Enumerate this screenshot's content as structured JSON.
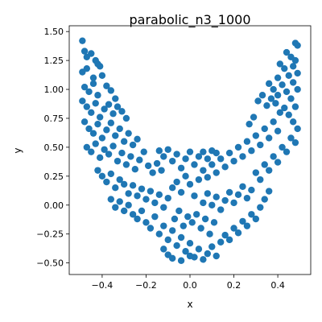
{
  "chart_data": {
    "type": "scatter",
    "title": "parabolic_n3_1000",
    "xlabel": "x",
    "ylabel": "y",
    "xlim": [
      -0.55,
      0.55
    ],
    "ylim": [
      -0.6,
      1.55
    ],
    "xticks": [
      -0.4,
      -0.2,
      0.0,
      0.2,
      0.4
    ],
    "xtick_labels": [
      "−0.4",
      "−0.2",
      "0.0",
      "0.2",
      "0.4"
    ],
    "yticks": [
      -0.5,
      -0.25,
      0.0,
      0.25,
      0.5,
      0.75,
      1.0,
      1.25,
      1.5
    ],
    "ytick_labels": [
      "−0.50",
      "−0.25",
      "0.00",
      "0.25",
      "0.50",
      "0.75",
      "1.00",
      "1.25",
      "1.50"
    ],
    "grid": false,
    "marker_color": "#1f77b4",
    "series": [
      {
        "points": [
          [
            -0.49,
            1.42
          ],
          [
            -0.48,
            1.33
          ],
          [
            -0.47,
            1.28
          ],
          [
            -0.45,
            1.31
          ],
          [
            -0.43,
            1.25
          ],
          [
            -0.42,
            1.22
          ],
          [
            -0.49,
            1.15
          ],
          [
            -0.47,
            1.18
          ],
          [
            -0.44,
            1.1
          ],
          [
            -0.41,
            1.2
          ],
          [
            -0.48,
            1.02
          ],
          [
            -0.46,
            0.98
          ],
          [
            -0.44,
            1.05
          ],
          [
            -0.42,
            0.95
          ],
          [
            -0.4,
            1.12
          ],
          [
            -0.38,
            1.03
          ],
          [
            -0.36,
            0.99
          ],
          [
            -0.34,
            0.92
          ],
          [
            -0.49,
            0.9
          ],
          [
            -0.47,
            0.85
          ],
          [
            -0.45,
            0.8
          ],
          [
            -0.43,
            0.88
          ],
          [
            -0.41,
            0.76
          ],
          [
            -0.39,
            0.83
          ],
          [
            -0.37,
            0.87
          ],
          [
            -0.35,
            0.79
          ],
          [
            -0.33,
            0.85
          ],
          [
            -0.31,
            0.81
          ],
          [
            -0.29,
            0.75
          ],
          [
            -0.48,
            0.72
          ],
          [
            -0.46,
            0.66
          ],
          [
            -0.44,
            0.62
          ],
          [
            -0.42,
            0.7
          ],
          [
            -0.4,
            0.58
          ],
          [
            -0.38,
            0.65
          ],
          [
            -0.36,
            0.71
          ],
          [
            -0.34,
            0.6
          ],
          [
            -0.32,
            0.66
          ],
          [
            -0.3,
            0.55
          ],
          [
            -0.28,
            0.62
          ],
          [
            -0.26,
            0.52
          ],
          [
            -0.24,
            0.57
          ],
          [
            -0.47,
            0.5
          ],
          [
            -0.45,
            0.46
          ],
          [
            -0.43,
            0.53
          ],
          [
            -0.41,
            0.41
          ],
          [
            -0.39,
            0.48
          ],
          [
            -0.37,
            0.44
          ],
          [
            -0.35,
            0.51
          ],
          [
            -0.33,
            0.38
          ],
          [
            -0.31,
            0.45
          ],
          [
            -0.29,
            0.35
          ],
          [
            -0.27,
            0.42
          ],
          [
            -0.25,
            0.31
          ],
          [
            -0.23,
            0.39
          ],
          [
            -0.21,
            0.46
          ],
          [
            -0.19,
            0.34
          ],
          [
            -0.17,
            0.28
          ],
          [
            -0.15,
            0.36
          ],
          [
            -0.13,
            0.3
          ],
          [
            -0.42,
            0.3
          ],
          [
            -0.4,
            0.25
          ],
          [
            -0.38,
            0.2
          ],
          [
            -0.36,
            0.27
          ],
          [
            -0.34,
            0.15
          ],
          [
            -0.32,
            0.22
          ],
          [
            -0.3,
            0.18
          ],
          [
            -0.28,
            0.1
          ],
          [
            -0.26,
            0.17
          ],
          [
            -0.24,
            0.08
          ],
          [
            -0.22,
            0.14
          ],
          [
            -0.2,
            0.05
          ],
          [
            -0.18,
            0.12
          ],
          [
            -0.16,
            0.02
          ],
          [
            -0.14,
            0.09
          ],
          [
            -0.12,
            -0.02
          ],
          [
            -0.1,
            0.06
          ],
          [
            -0.08,
            0.15
          ],
          [
            -0.06,
            0.2
          ],
          [
            -0.04,
            0.11
          ],
          [
            -0.02,
            0.25
          ],
          [
            0.0,
            0.18
          ],
          [
            0.02,
            0.08
          ],
          [
            0.04,
            0.22
          ],
          [
            -0.36,
            0.05
          ],
          [
            -0.34,
            -0.02
          ],
          [
            -0.32,
            0.03
          ],
          [
            -0.3,
            -0.05
          ],
          [
            -0.28,
            0.0
          ],
          [
            -0.26,
            -0.08
          ],
          [
            -0.24,
            -0.12
          ],
          [
            -0.22,
            -0.05
          ],
          [
            -0.2,
            -0.15
          ],
          [
            -0.18,
            -0.2
          ],
          [
            -0.16,
            -0.1
          ],
          [
            -0.14,
            -0.25
          ],
          [
            -0.12,
            -0.18
          ],
          [
            -0.1,
            -0.3
          ],
          [
            -0.08,
            -0.22
          ],
          [
            -0.06,
            -0.35
          ],
          [
            -0.04,
            -0.28
          ],
          [
            -0.02,
            -0.4
          ],
          [
            0.0,
            -0.33
          ],
          [
            0.02,
            -0.45
          ],
          [
            0.04,
            -0.38
          ],
          [
            0.06,
            -0.47
          ],
          [
            0.08,
            -0.42
          ],
          [
            0.1,
            -0.36
          ],
          [
            -0.1,
            -0.43
          ],
          [
            -0.12,
            -0.38
          ],
          [
            -0.08,
            -0.46
          ],
          [
            -0.04,
            -0.48
          ],
          [
            0.0,
            -0.44
          ],
          [
            0.12,
            -0.44
          ],
          [
            0.14,
            -0.32
          ],
          [
            0.16,
            -0.26
          ],
          [
            0.18,
            -0.3
          ],
          [
            0.2,
            -0.2
          ],
          [
            0.22,
            -0.24
          ],
          [
            0.24,
            -0.14
          ],
          [
            0.26,
            -0.18
          ],
          [
            0.28,
            -0.08
          ],
          [
            0.3,
            -0.12
          ],
          [
            0.32,
            -0.02
          ],
          [
            0.34,
            0.05
          ],
          [
            0.36,
            0.12
          ],
          [
            0.06,
            0.02
          ],
          [
            0.08,
            0.1
          ],
          [
            0.1,
            0.0
          ],
          [
            0.12,
            0.07
          ],
          [
            0.14,
            -0.04
          ],
          [
            0.16,
            0.04
          ],
          [
            0.18,
            0.11
          ],
          [
            0.2,
            0.02
          ],
          [
            0.22,
            0.09
          ],
          [
            0.24,
            0.16
          ],
          [
            0.26,
            0.06
          ],
          [
            0.28,
            0.13
          ],
          [
            0.06,
            0.3
          ],
          [
            0.08,
            0.24
          ],
          [
            0.1,
            0.35
          ],
          [
            0.12,
            0.28
          ],
          [
            0.14,
            0.4
          ],
          [
            0.16,
            0.33
          ],
          [
            0.18,
            0.45
          ],
          [
            0.2,
            0.38
          ],
          [
            0.22,
            0.5
          ],
          [
            0.24,
            0.42
          ],
          [
            0.26,
            0.55
          ],
          [
            0.28,
            0.47
          ],
          [
            0.3,
            0.6
          ],
          [
            0.32,
            0.52
          ],
          [
            0.34,
            0.66
          ],
          [
            0.36,
            0.58
          ],
          [
            0.38,
            0.72
          ],
          [
            0.4,
            0.64
          ],
          [
            0.3,
            0.28
          ],
          [
            0.32,
            0.22
          ],
          [
            0.34,
            0.35
          ],
          [
            0.36,
            0.3
          ],
          [
            0.38,
            0.42
          ],
          [
            0.4,
            0.37
          ],
          [
            0.42,
            0.5
          ],
          [
            0.44,
            0.46
          ],
          [
            0.46,
            0.58
          ],
          [
            0.48,
            0.54
          ],
          [
            0.49,
            0.66
          ],
          [
            0.47,
            0.72
          ],
          [
            0.45,
            0.78
          ],
          [
            0.43,
            0.84
          ],
          [
            0.41,
            0.8
          ],
          [
            0.39,
            0.88
          ],
          [
            0.37,
            0.92
          ],
          [
            0.35,
            0.86
          ],
          [
            0.33,
            0.95
          ],
          [
            0.31,
            0.9
          ],
          [
            0.29,
            0.76
          ],
          [
            0.27,
            0.7
          ],
          [
            0.48,
            0.85
          ],
          [
            0.46,
            0.92
          ],
          [
            0.44,
            0.98
          ],
          [
            0.42,
            1.04
          ],
          [
            0.4,
            1.1
          ],
          [
            0.49,
            1.0
          ],
          [
            0.47,
            1.06
          ],
          [
            0.45,
            1.12
          ],
          [
            0.43,
            1.18
          ],
          [
            0.41,
            1.22
          ],
          [
            0.49,
            1.14
          ],
          [
            0.48,
            1.25
          ],
          [
            0.46,
            1.28
          ],
          [
            0.44,
            1.32
          ],
          [
            0.49,
            1.38
          ],
          [
            0.48,
            1.4
          ],
          [
            0.47,
            1.2
          ],
          [
            0.38,
            1.0
          ],
          [
            0.36,
            1.05
          ],
          [
            0.4,
            0.95
          ],
          [
            -0.02,
            0.4
          ],
          [
            0.0,
            0.46
          ],
          [
            0.02,
            0.35
          ],
          [
            0.04,
            0.42
          ],
          [
            -0.04,
            0.32
          ],
          [
            -0.06,
            0.44
          ],
          [
            -0.08,
            0.38
          ],
          [
            -0.1,
            0.48
          ],
          [
            -0.12,
            0.42
          ],
          [
            -0.14,
            0.47
          ],
          [
            0.06,
            0.46
          ],
          [
            0.08,
            0.4
          ],
          [
            0.1,
            0.47
          ],
          [
            0.12,
            0.45
          ],
          [
            -0.01,
            -0.1
          ],
          [
            0.01,
            -0.15
          ],
          [
            0.03,
            -0.08
          ],
          [
            -0.03,
            -0.18
          ],
          [
            0.05,
            -0.2
          ],
          [
            0.07,
            -0.12
          ],
          [
            -0.05,
            -0.05
          ],
          [
            0.09,
            -0.25
          ],
          [
            0.11,
            -0.15
          ],
          [
            -0.07,
            -0.12
          ]
        ]
      }
    ]
  }
}
